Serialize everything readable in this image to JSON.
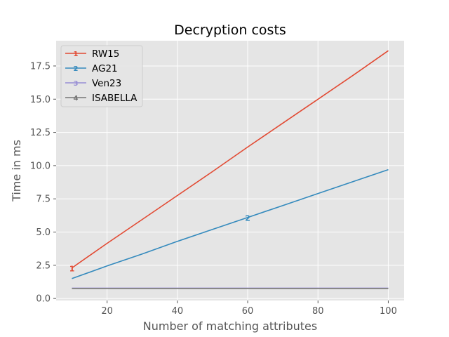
{
  "chart_data": {
    "type": "line",
    "title": "Decryption costs",
    "xlabel": "Number of matching attributes",
    "ylabel": "Time in ms",
    "xlim": [
      5.5,
      104.5
    ],
    "ylim": [
      -0.15,
      19.4
    ],
    "xticks": [
      20,
      40,
      60,
      80,
      100
    ],
    "yticks": [
      0.0,
      2.5,
      5.0,
      7.5,
      10.0,
      12.5,
      15.0,
      17.5
    ],
    "ytick_labels": [
      "0.0",
      "2.5",
      "5.0",
      "7.5",
      "10.0",
      "12.5",
      "15.0",
      "17.5"
    ],
    "grid": true,
    "legend_position": "top-left",
    "series": [
      {
        "name": "RW15",
        "color": "#E24A33",
        "x": [
          10,
          20,
          30,
          40,
          50,
          60,
          70,
          80,
          90,
          100
        ],
        "y": [
          2.3,
          4.15,
          5.95,
          7.75,
          9.55,
          11.4,
          13.2,
          15.0,
          16.8,
          18.65
        ],
        "error_marker": {
          "x": 10,
          "y": 2.3,
          "label": "1"
        }
      },
      {
        "name": "AG21",
        "color": "#348ABD",
        "x": [
          10,
          20,
          30,
          40,
          50,
          60,
          70,
          80,
          90,
          100
        ],
        "y": [
          1.5,
          2.45,
          3.35,
          4.3,
          5.2,
          6.1,
          7.0,
          7.9,
          8.8,
          9.7
        ],
        "error_marker": {
          "x": 60,
          "y": 6.1,
          "label": "2"
        }
      },
      {
        "name": "Ven23",
        "color": "#988ED5",
        "x": [
          10,
          20,
          30,
          40,
          50,
          60,
          70,
          80,
          90,
          100
        ],
        "y": [
          0.78,
          0.78,
          0.78,
          0.78,
          0.78,
          0.78,
          0.78,
          0.78,
          0.78,
          0.78
        ],
        "error_marker": {
          "label": "3"
        }
      },
      {
        "name": "ISABELLA",
        "color": "#777777",
        "x": [
          10,
          20,
          30,
          40,
          50,
          60,
          70,
          80,
          90,
          100
        ],
        "y": [
          0.76,
          0.76,
          0.76,
          0.76,
          0.76,
          0.76,
          0.76,
          0.76,
          0.76,
          0.76
        ],
        "error_marker": {
          "label": "4"
        }
      }
    ]
  }
}
